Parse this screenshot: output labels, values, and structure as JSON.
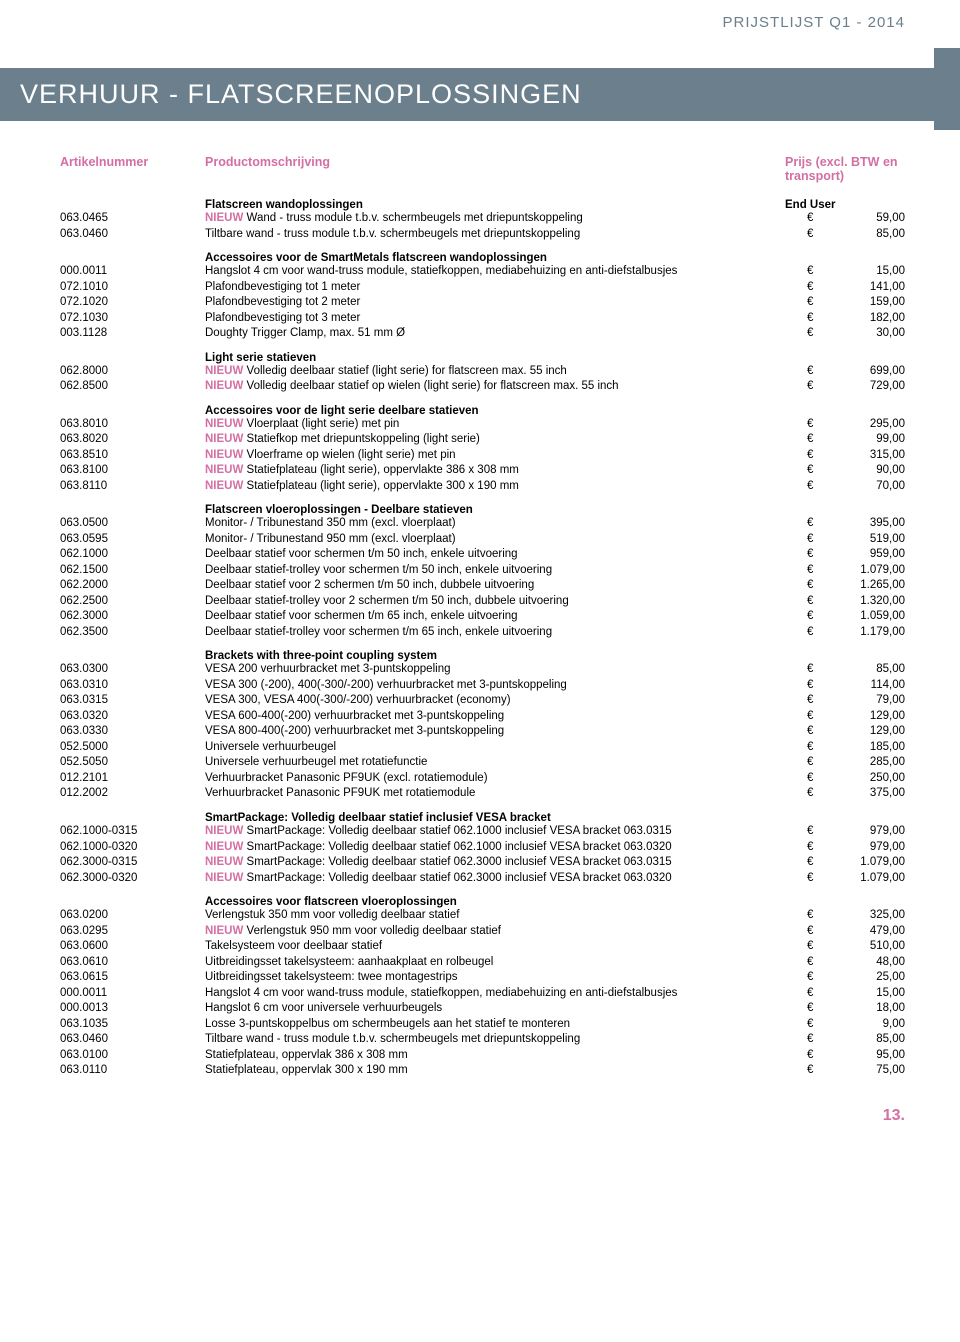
{
  "meta": {
    "topRight": "PRIJSTLIJST Q1 - 2014",
    "title": "VERHUUR - FLATSCREENOPLOSSINGEN",
    "headers": {
      "artikel": "Artikelnummer",
      "product": "Productomschrijving",
      "prijs": "Prijs (excl. BTW en transport)"
    },
    "pageNumber": "13.",
    "currency": "€",
    "nieuwLabel": "NIEUW",
    "colors": {
      "accent": "#d46fa3",
      "banner": "#6b7f8c"
    }
  },
  "sections": [
    {
      "heading": "Flatscreen wandoplossingen",
      "headingRight": "End User",
      "rows": [
        {
          "art": "063.0465",
          "nieuw": true,
          "desc": "Wand - truss module t.b.v. schermbeugels met driepuntskoppeling",
          "price": "59,00"
        },
        {
          "art": "063.0460",
          "desc": "Tiltbare wand - truss module t.b.v. schermbeugels met driepuntskoppeling",
          "price": "85,00"
        }
      ]
    },
    {
      "heading": "Accessoires voor de SmartMetals flatscreen wandoplossingen",
      "rows": [
        {
          "art": "000.0011",
          "desc": "Hangslot 4 cm voor wand-truss module, statiefkoppen, mediabehuizing en anti-diefstalbusjes",
          "price": "15,00"
        },
        {
          "art": "072.1010",
          "desc": "Plafondbevestiging tot 1 meter",
          "price": "141,00"
        },
        {
          "art": "072.1020",
          "desc": "Plafondbevestiging tot 2 meter",
          "price": "159,00"
        },
        {
          "art": "072.1030",
          "desc": "Plafondbevestiging tot 3 meter",
          "price": "182,00"
        },
        {
          "art": "003.1128",
          "desc": "Doughty Trigger Clamp, max. 51 mm Ø",
          "price": "30,00"
        }
      ]
    },
    {
      "heading": "Light serie statieven",
      "rows": [
        {
          "art": "062.8000",
          "nieuw": true,
          "desc": "Volledig deelbaar statief (light serie) for flatscreen max. 55 inch",
          "price": "699,00"
        },
        {
          "art": "062.8500",
          "nieuw": true,
          "desc": "Volledig deelbaar statief op wielen (light serie) for flatscreen max. 55 inch",
          "price": "729,00"
        }
      ]
    },
    {
      "heading": "Accessoires voor de light serie deelbare statieven",
      "rows": [
        {
          "art": "063.8010",
          "nieuw": true,
          "desc": "Vloerplaat (light serie) met pin",
          "price": "295,00"
        },
        {
          "art": "063.8020",
          "nieuw": true,
          "desc": "Statiefkop met driepuntskoppeling (light serie)",
          "price": "99,00"
        },
        {
          "art": "063.8510",
          "nieuw": true,
          "desc": "Vloerframe op wielen (light serie) met pin",
          "price": "315,00"
        },
        {
          "art": "063.8100",
          "nieuw": true,
          "desc": "Statiefplateau (light serie), oppervlakte 386 x 308 mm",
          "price": "90,00"
        },
        {
          "art": "063.8110",
          "nieuw": true,
          "desc": "Statiefplateau (light serie), oppervlakte 300 x 190 mm",
          "price": "70,00"
        }
      ]
    },
    {
      "heading": "Flatscreen vloeroplossingen - Deelbare statieven",
      "rows": [
        {
          "art": "063.0500",
          "desc": "Monitor- / Tribunestand 350 mm (excl. vloerplaat)",
          "price": "395,00"
        },
        {
          "art": "063.0595",
          "desc": "Monitor- / Tribunestand 950 mm (excl. vloerplaat)",
          "price": "519,00"
        },
        {
          "art": "062.1000",
          "desc": "Deelbaar statief voor schermen t/m 50 inch, enkele uitvoering",
          "price": "959,00"
        },
        {
          "art": "062.1500",
          "desc": "Deelbaar statief-trolley voor schermen t/m 50 inch, enkele uitvoering",
          "price": "1.079,00"
        },
        {
          "art": "062.2000",
          "desc": "Deelbaar statief voor 2 schermen t/m 50 inch, dubbele uitvoering",
          "price": "1.265,00"
        },
        {
          "art": "062.2500",
          "desc": "Deelbaar statief-trolley voor 2 schermen t/m 50 inch, dubbele uitvoering",
          "price": "1.320,00"
        },
        {
          "art": "062.3000",
          "desc": "Deelbaar statief voor schermen t/m 65 inch, enkele uitvoering",
          "price": "1.059,00"
        },
        {
          "art": "062.3500",
          "desc": "Deelbaar statief-trolley voor schermen t/m 65 inch, enkele uitvoering",
          "price": "1.179,00"
        }
      ]
    },
    {
      "heading": "Brackets with three-point coupling system",
      "rows": [
        {
          "art": "063.0300",
          "desc": "VESA 200 verhuurbracket met 3-puntskoppeling",
          "price": "85,00"
        },
        {
          "art": "063.0310",
          "desc": "VESA 300 (-200), 400(-300/-200) verhuurbracket met 3-puntskoppeling",
          "price": "114,00"
        },
        {
          "art": "063.0315",
          "desc": "VESA 300, VESA 400(-300/-200) verhuurbracket (economy)",
          "price": "79,00"
        },
        {
          "art": "063.0320",
          "desc": "VESA 600-400(-200) verhuurbracket met 3-puntskoppeling",
          "price": "129,00"
        },
        {
          "art": "063.0330",
          "desc": "VESA 800-400(-200) verhuurbracket met 3-puntskoppeling",
          "price": "129,00"
        },
        {
          "art": "052.5000",
          "desc": "Universele verhuurbeugel",
          "price": "185,00"
        },
        {
          "art": "052.5050",
          "desc": "Universele verhuurbeugel met rotatiefunctie",
          "price": "285,00"
        },
        {
          "art": "012.2101",
          "desc": "Verhuurbracket Panasonic PF9UK (excl. rotatiemodule)",
          "price": "250,00"
        },
        {
          "art": "012.2002",
          "desc": "Verhuurbracket Panasonic PF9UK met rotatiemodule",
          "price": "375,00"
        }
      ]
    },
    {
      "heading": "SmartPackage: Volledig deelbaar statief inclusief VESA bracket",
      "rows": [
        {
          "art": "062.1000-0315",
          "nieuw": true,
          "desc": "SmartPackage: Volledig deelbaar statief 062.1000 inclusief VESA bracket 063.0315",
          "price": "979,00"
        },
        {
          "art": "062.1000-0320",
          "nieuw": true,
          "desc": "SmartPackage: Volledig deelbaar statief 062.1000 inclusief VESA bracket 063.0320",
          "price": "979,00"
        },
        {
          "art": "062.3000-0315",
          "nieuw": true,
          "desc": "SmartPackage: Volledig deelbaar statief 062.3000 inclusief VESA bracket 063.0315",
          "price": "1.079,00"
        },
        {
          "art": "062.3000-0320",
          "nieuw": true,
          "desc": "SmartPackage: Volledig deelbaar statief 062.3000 inclusief VESA bracket 063.0320",
          "price": "1.079,00"
        }
      ]
    },
    {
      "heading": "Accessoires voor flatscreen vloeroplossingen",
      "rows": [
        {
          "art": "063.0200",
          "desc": "Verlengstuk 350 mm voor volledig deelbaar statief",
          "price": "325,00"
        },
        {
          "art": "063.0295",
          "nieuw": true,
          "desc": "Verlengstuk 950 mm voor volledig deelbaar statief",
          "price": "479,00"
        },
        {
          "art": "063.0600",
          "desc": "Takelsysteem voor deelbaar statief",
          "price": "510,00"
        },
        {
          "art": "063.0610",
          "desc": "Uitbreidingsset takelsysteem: aanhaakplaat en rolbeugel",
          "price": "48,00"
        },
        {
          "art": "063.0615",
          "desc": "Uitbreidingsset takelsysteem: twee montagestrips",
          "price": "25,00"
        },
        {
          "art": "000.0011",
          "desc": "Hangslot 4 cm voor wand-truss module, statiefkoppen, mediabehuizing en anti-diefstalbusjes",
          "price": "15,00"
        },
        {
          "art": "000.0013",
          "desc": "Hangslot 6 cm voor universele verhuurbeugels",
          "price": "18,00"
        },
        {
          "art": "063.1035",
          "desc": "Losse 3-puntskoppelbus om schermbeugels aan het statief te monteren",
          "price": "9,00"
        },
        {
          "art": "063.0460",
          "desc": "Tiltbare wand - truss module t.b.v. schermbeugels met driepuntskoppeling",
          "price": "85,00"
        },
        {
          "art": "063.0100",
          "desc": "Statiefplateau, oppervlak 386 x 308 mm",
          "price": "95,00"
        },
        {
          "art": "063.0110",
          "desc": "Statiefplateau, oppervlak 300 x 190 mm",
          "price": "75,00"
        }
      ]
    }
  ]
}
